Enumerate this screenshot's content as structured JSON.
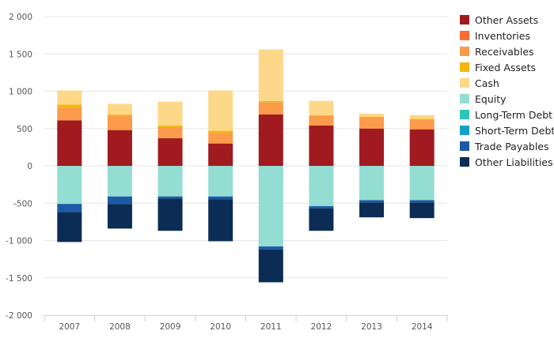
{
  "chart_data": {
    "type": "bar",
    "stacked": true,
    "categories": [
      "2007",
      "2008",
      "2009",
      "2010",
      "2011",
      "2012",
      "2013",
      "2014"
    ],
    "ylim": [
      -2000,
      2000
    ],
    "yticks": [
      2000,
      1500,
      1000,
      500,
      0,
      -500,
      -1000,
      -1500,
      -2000
    ],
    "ytick_labels": [
      "2 000",
      "1 500",
      "1 000",
      "500",
      "0",
      "-500",
      "-1 000",
      "-1 500",
      "-2 000"
    ],
    "grid": true,
    "legend_position": "right",
    "series": [
      {
        "name": "Other Assets",
        "color": "#a01a1f",
        "values": [
          610,
          480,
          370,
          300,
          690,
          540,
          500,
          490
        ]
      },
      {
        "name": "Inventories",
        "color": "#ff6b35",
        "values": [
          0,
          0,
          0,
          0,
          0,
          0,
          0,
          0
        ]
      },
      {
        "name": "Receivables",
        "color": "#fb9b4b",
        "values": [
          170,
          190,
          150,
          140,
          160,
          130,
          150,
          130
        ]
      },
      {
        "name": "Fixed Assets",
        "color": "#f6b50e",
        "values": [
          40,
          20,
          20,
          30,
          20,
          10,
          10,
          10
        ]
      },
      {
        "name": "Cash",
        "color": "#fdd888",
        "values": [
          190,
          140,
          320,
          540,
          690,
          190,
          40,
          50
        ]
      },
      {
        "name": "Equity",
        "color": "#93ddd2",
        "values": [
          -510,
          -410,
          -410,
          -410,
          -1080,
          -540,
          -460,
          -460
        ]
      },
      {
        "name": "Long-Term Debt",
        "color": "#2ec4b6",
        "values": [
          0,
          0,
          0,
          0,
          0,
          0,
          0,
          0
        ]
      },
      {
        "name": "Short-Term Debt",
        "color": "#16a0c9",
        "values": [
          0,
          0,
          0,
          0,
          0,
          0,
          0,
          0
        ]
      },
      {
        "name": "Trade Payables",
        "color": "#1a5aa8",
        "values": [
          -110,
          -100,
          -30,
          -40,
          -40,
          -30,
          -30,
          -30
        ]
      },
      {
        "name": "Other Liabilities",
        "color": "#0b2d55",
        "values": [
          -400,
          -330,
          -430,
          -560,
          -440,
          -300,
          -200,
          -210
        ]
      }
    ]
  }
}
